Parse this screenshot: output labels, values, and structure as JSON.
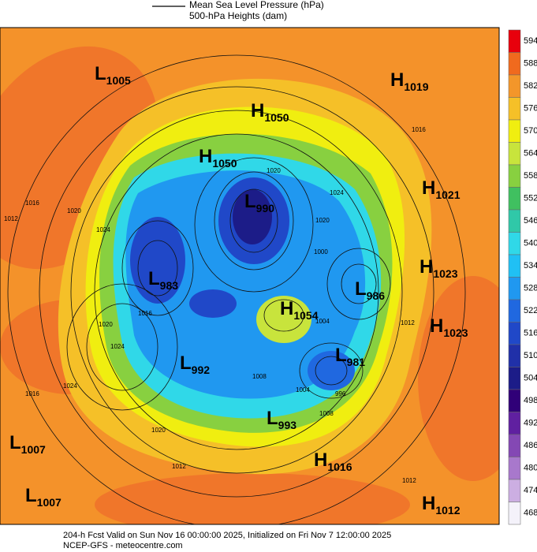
{
  "legend": {
    "items": [
      "Mean Sea Level Pressure (hPa)",
      "500-hPa Heights (dam)"
    ]
  },
  "colorbar": {
    "ticks": [
      594,
      588,
      582,
      576,
      570,
      564,
      558,
      552,
      546,
      540,
      534,
      528,
      522,
      516,
      510,
      504,
      498,
      492,
      486,
      480,
      474,
      468
    ],
    "colors": [
      "#e8000c",
      "#f06a1e",
      "#f3962a",
      "#f5c028",
      "#f0ee10",
      "#c8e43c",
      "#88d040",
      "#40c060",
      "#30c8a8",
      "#30d8e8",
      "#20c0f4",
      "#2098f0",
      "#2068e0",
      "#2048c8",
      "#2030a8",
      "#1c1c88",
      "#300078",
      "#6020a0",
      "#8448b4",
      "#a878cc",
      "#ccaee2",
      "#f4f2fa"
    ]
  },
  "centers": [
    {
      "type": "L",
      "value": 1005
    },
    {
      "type": "H",
      "value": 1019
    },
    {
      "type": "H",
      "value": 1050
    },
    {
      "type": "H",
      "value": 1050
    },
    {
      "type": "H",
      "value": 1021
    },
    {
      "type": "L",
      "value": 990
    },
    {
      "type": "H",
      "value": 1023
    },
    {
      "type": "L",
      "value": 983
    },
    {
      "type": "L",
      "value": 986
    },
    {
      "type": "H",
      "value": 1054
    },
    {
      "type": "H",
      "value": 1023
    },
    {
      "type": "L",
      "value": 981
    },
    {
      "type": "L",
      "value": 992
    },
    {
      "type": "L",
      "value": 993
    },
    {
      "type": "L",
      "value": 1007
    },
    {
      "type": "H",
      "value": 1016
    },
    {
      "type": "L",
      "value": 1007
    },
    {
      "type": "H",
      "value": 1012
    }
  ],
  "isobar_labels": [
    1016,
    1020,
    1024,
    1012,
    1016,
    1020,
    1024,
    1016,
    1020,
    1024,
    1020,
    1016,
    1012,
    1008,
    1004,
    1012,
    1012,
    1020,
    1024,
    1000,
    1008,
    1004,
    996
  ],
  "footer": {
    "line1": "204-h Fcst Valid on Sun Nov 16 00:00:00 2025, Initialized on Fri Nov  7 12:00:00 2025",
    "line2": "NCEP-GFS - meteocentre.com"
  }
}
